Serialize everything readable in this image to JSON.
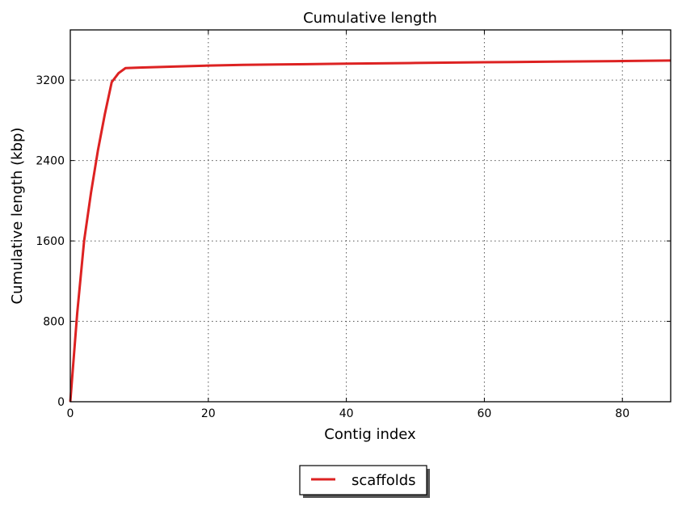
{
  "chart_data": {
    "type": "line",
    "title": "Cumulative length",
    "xlabel": "Contig index",
    "ylabel": "Cumulative length (kbp)",
    "xlim": [
      0,
      87
    ],
    "ylim": [
      0,
      3700
    ],
    "xticks": [
      0,
      20,
      40,
      60,
      80
    ],
    "yticks": [
      0,
      800,
      1600,
      2400,
      3200
    ],
    "grid": true,
    "legend": {
      "placement": "bottom-center",
      "entries": [
        "scaffolds"
      ]
    },
    "series": [
      {
        "name": "scaffolds",
        "color": "#dd2222",
        "x": [
          0,
          1,
          2,
          3,
          4,
          5,
          6,
          7,
          8,
          10,
          15,
          20,
          25,
          30,
          40,
          50,
          60,
          70,
          80,
          87
        ],
        "y": [
          0,
          880,
          1600,
          2080,
          2500,
          2860,
          3180,
          3270,
          3320,
          3325,
          3335,
          3345,
          3352,
          3356,
          3364,
          3371,
          3378,
          3384,
          3390,
          3395
        ]
      }
    ]
  }
}
